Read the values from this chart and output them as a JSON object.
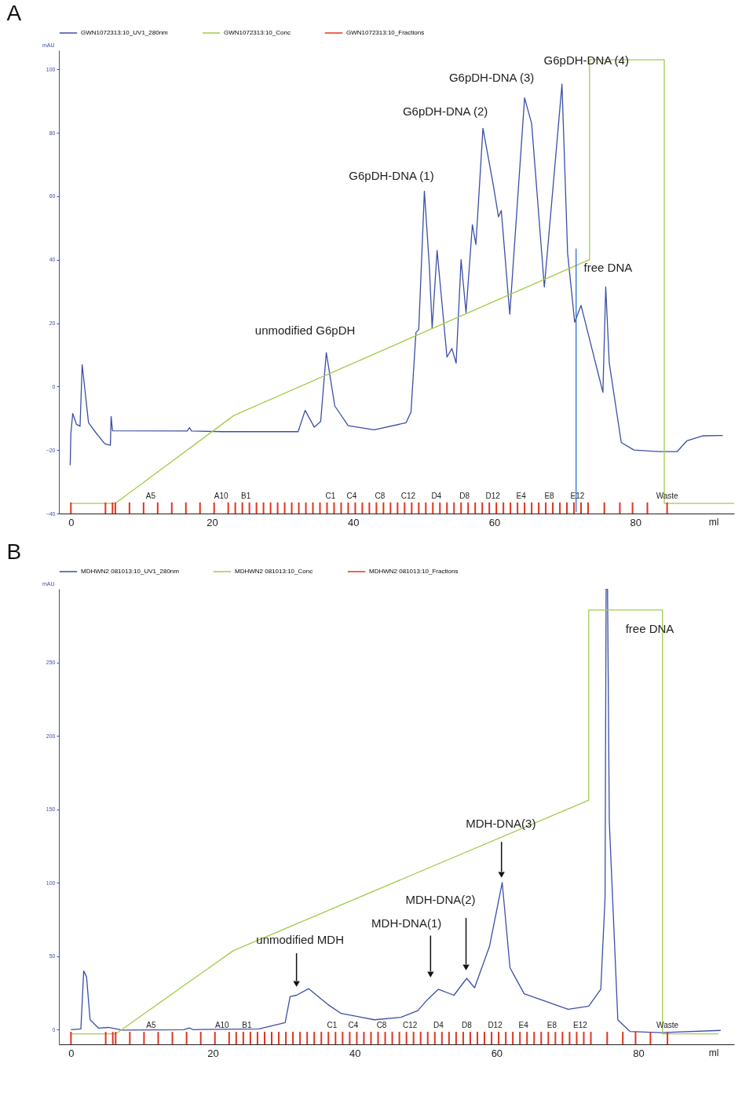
{
  "chart_data": [
    {
      "type": "line",
      "title": "A",
      "xlabel": "ml",
      "ylabel": "mAU",
      "xlim": [
        -1.7,
        94
      ],
      "ylim": [
        -40,
        106
      ],
      "xticks": [
        0,
        20,
        40,
        60,
        80
      ],
      "yticks": [
        -40,
        -20,
        0,
        20,
        40,
        60,
        80,
        100
      ],
      "legend": "top",
      "series": [
        {
          "name": "GWN1072313:10_UV1_280nm",
          "color": "#3c4fa5",
          "x": [
            -0.1,
            0,
            0.26,
            0.8,
            1.3,
            1.6,
            2.5,
            3.6,
            4.8,
            5.6,
            5.7,
            5.9,
            16.5,
            16.8,
            17.1,
            21.4,
            32.2,
            33.2,
            34.5,
            35.4,
            36.2,
            37.4,
            39.3,
            43.0,
            47.5,
            48.2,
            48.9,
            49.3,
            50.1,
            50.8,
            51.2,
            51.9,
            53.3,
            54.0,
            54.6,
            55.3,
            56.0,
            56.9,
            57.4,
            58.4,
            59.9,
            60.6,
            61.0,
            62.2,
            64.3,
            65.3,
            67.1,
            69.6,
            70.4,
            71.4,
            72.3,
            75.4,
            75.8,
            76.3,
            78.0,
            79.8,
            83.3,
            85.9,
            87.3,
            89.6,
            92.4
          ],
          "values": [
            -24.8,
            -14.7,
            -8.5,
            -11.9,
            -12.5,
            6.9,
            -11.4,
            -14.7,
            -18.0,
            -18.5,
            -9.4,
            -13.9,
            -14.0,
            -12.9,
            -14.0,
            -14.2,
            -14.2,
            -7.5,
            -12.8,
            -11.0,
            10.7,
            -6.1,
            -12.3,
            -13.6,
            -11.4,
            -8.0,
            17.0,
            18.0,
            61.6,
            38.0,
            18.4,
            42.9,
            9.3,
            12.0,
            7.4,
            40.0,
            23.3,
            51.0,
            44.8,
            81.4,
            63.1,
            53.5,
            55.5,
            22.8,
            91.0,
            82.9,
            31.4,
            95.3,
            42.0,
            20.3,
            25.6,
            -1.8,
            31.4,
            7.4,
            -17.6,
            -20.0,
            -20.5,
            -20.5,
            -17.1,
            -15.5,
            -15.4
          ]
        },
        {
          "name": "GWN1072313:10_Conc",
          "color": "#a2cc4a",
          "x": [
            0,
            6.3,
            23.1,
            73.5,
            73.5,
            84.1,
            84.1,
            94
          ],
          "values": [
            -36.8,
            -36.8,
            -9.1,
            40.0,
            103.0,
            103.0,
            -36.8,
            -36.8
          ]
        },
        {
          "name": "GWN1072313:10_Fractions",
          "color": "#e2341d",
          "type": "bar",
          "x": [
            0,
            4.9,
            5.9,
            6.3,
            8.3,
            10.3,
            12.3,
            14.3,
            16.3,
            18.3,
            20.3,
            22.3,
            23.3,
            24.3,
            25.3,
            26.3,
            27.3,
            28.3,
            29.3,
            30.3,
            31.3,
            32.3,
            33.3,
            34.3,
            35.3,
            36.3,
            37.3,
            38.3,
            39.3,
            40.3,
            41.3,
            42.3,
            43.3,
            44.3,
            45.3,
            46.3,
            47.3,
            48.3,
            49.3,
            50.3,
            51.3,
            52.3,
            53.3,
            54.3,
            55.3,
            56.3,
            57.3,
            58.3,
            59.3,
            60.3,
            61.3,
            62.3,
            63.3,
            64.3,
            65.3,
            66.3,
            67.3,
            68.3,
            69.3,
            70.3,
            71.3,
            72.3,
            73.3,
            75.6,
            77.8,
            79.6,
            81.7,
            84.5
          ],
          "base": [
            -40,
            -40,
            -40,
            -40,
            -40,
            -40,
            -40,
            -40,
            -40,
            -40,
            -40,
            -40,
            -40,
            -40,
            -40,
            -40,
            -40,
            -40,
            -40,
            -40,
            -40,
            -40,
            -40,
            -40,
            -40,
            -40,
            -40,
            -40,
            -40,
            -40,
            -40,
            -40,
            -40,
            -40,
            -40,
            -40,
            -40,
            -40,
            -40,
            -40,
            -40,
            -40,
            -40,
            -40,
            -40,
            -40,
            -40,
            -40,
            -40,
            -40,
            -40,
            -40,
            -40,
            -40,
            -40,
            -40,
            -40,
            -40,
            -40,
            -40,
            -40,
            -40,
            -40,
            -40,
            -40,
            -40,
            -40,
            -40
          ],
          "values": [
            3.5,
            3.5,
            3.5,
            3.5,
            3.5,
            3.5,
            3.5,
            3.5,
            3.5,
            3.5,
            3.5,
            3.5,
            3.5,
            3.5,
            3.5,
            3.5,
            3.5,
            3.5,
            3.5,
            3.5,
            3.5,
            3.5,
            3.5,
            3.5,
            3.5,
            3.5,
            3.5,
            3.5,
            3.5,
            3.5,
            3.5,
            3.5,
            3.5,
            3.5,
            3.5,
            3.5,
            3.5,
            3.5,
            3.5,
            3.5,
            3.5,
            3.5,
            3.5,
            3.5,
            3.5,
            3.5,
            3.5,
            3.5,
            3.5,
            3.5,
            3.5,
            3.5,
            3.5,
            3.5,
            3.5,
            3.5,
            3.5,
            3.5,
            3.5,
            3.5,
            3.5,
            3.5,
            3.5,
            3.5,
            3.5,
            3.5,
            3.5,
            3.5
          ],
          "value_labels": [
            null,
            null,
            null,
            null,
            null,
            "A5",
            null,
            null,
            null,
            null,
            "A10",
            null,
            null,
            "B1",
            null,
            null,
            null,
            null,
            null,
            null,
            null,
            null,
            null,
            null,
            null,
            "C1",
            null,
            null,
            "C4",
            null,
            null,
            null,
            "C8",
            null,
            null,
            null,
            "C12",
            null,
            null,
            null,
            "D4",
            null,
            null,
            null,
            "D8",
            null,
            null,
            null,
            "D12",
            null,
            null,
            null,
            "E4",
            null,
            null,
            null,
            "E8",
            null,
            null,
            null,
            "E12",
            null,
            null,
            null,
            null,
            null,
            null,
            "Waste"
          ]
        },
        {
          "color": "#2e6fd0",
          "x": [
            71.6,
            71.6
          ],
          "values": [
            43.5,
            -39.5
          ]
        }
      ],
      "annotations": [
        {
          "text": "unmodified G6pDH",
          "x": 36.2,
          "y": 10.7
        },
        {
          "text": "G6pDH-DNA (1)",
          "x": 50.1,
          "y": 61.6
        },
        {
          "text": "G6pDH-DNA (2)",
          "x": 58.4,
          "y": 81.4
        },
        {
          "text": "G6pDH-DNA (3)",
          "x": 64.3,
          "y": 91.0
        },
        {
          "text": "G6pDH-DNA (4)",
          "x": 69.6,
          "y": 95.3
        },
        {
          "text": "free DNA",
          "x": 75.8,
          "y": 31.4
        }
      ]
    },
    {
      "type": "line",
      "title": "B",
      "xlabel": "ml",
      "ylabel": "mAU",
      "xlim": [
        -1.7,
        93.5
      ],
      "ylim": [
        -10,
        300
      ],
      "xticks": [
        0,
        20,
        40,
        60,
        80
      ],
      "yticks": [
        0,
        50,
        100,
        150,
        200,
        250
      ],
      "legend": "top",
      "series": [
        {
          "name": "MDHWN2 081013:10_UV1_280nm",
          "color": "#3c4fa5",
          "x": [
            0,
            1.4,
            1.8,
            2.2,
            2.7,
            3.9,
            5.3,
            7.2,
            15.9,
            16.7,
            17.2,
            26.5,
            30.2,
            30.9,
            31.8,
            33.5,
            36.2,
            38.1,
            41.0,
            42.8,
            46.5,
            48.9,
            50.1,
            51.8,
            54.0,
            55.8,
            56.9,
            59.0,
            60.8,
            61.9,
            62.6,
            63.9,
            70.1,
            73.0,
            74.7,
            75.3,
            75.45,
            75.65,
            75.9,
            77.1,
            78.8,
            83.1,
            91.6
          ],
          "values": [
            0,
            0.5,
            39.9,
            35.9,
            6.7,
            1.0,
            1.5,
            -0.3,
            0,
            1.2,
            0,
            0.5,
            4.8,
            22.5,
            23.4,
            27.9,
            17.2,
            11.0,
            8.4,
            6.7,
            8.4,
            12.9,
            19.6,
            27.5,
            23.4,
            34.9,
            28.5,
            56.5,
            100.1,
            42.1,
            35.9,
            24.4,
            13.9,
            16.0,
            27.5,
            89.8,
            300,
            300,
            141.6,
            6.7,
            -1.2,
            -2.0,
            -0.5
          ]
        },
        {
          "name": "MDHWN2 081013:10_Conc",
          "color": "#a2cc4a",
          "x": [
            0,
            6.3,
            22.9,
            73.0,
            73.0,
            83.4,
            83.4,
            91.3
          ],
          "values": [
            -2.9,
            -2.9,
            53.8,
            156.2,
            285.6,
            285.6,
            -2.9,
            -2.9
          ]
        },
        {
          "name": "MDHWN2 081013:10_Fractions",
          "color": "#e2341d",
          "type": "bar",
          "x": [
            0,
            4.9,
            5.9,
            6.3,
            8.3,
            10.3,
            12.3,
            14.3,
            16.3,
            18.3,
            20.3,
            22.3,
            23.3,
            24.3,
            25.3,
            26.3,
            27.3,
            28.3,
            29.3,
            30.3,
            31.3,
            32.3,
            33.3,
            34.3,
            35.3,
            36.3,
            37.3,
            38.3,
            39.3,
            40.3,
            41.3,
            42.3,
            43.3,
            44.3,
            45.3,
            46.3,
            47.3,
            48.3,
            49.3,
            50.3,
            51.3,
            52.3,
            53.3,
            54.3,
            55.3,
            56.3,
            57.3,
            58.3,
            59.3,
            60.3,
            61.3,
            62.3,
            63.3,
            64.3,
            65.3,
            66.3,
            67.3,
            68.3,
            69.3,
            70.3,
            71.3,
            72.3,
            73.3,
            75.6,
            77.8,
            79.6,
            81.7,
            84.1
          ],
          "base": [
            -10,
            -10,
            -10,
            -10,
            -10,
            -10,
            -10,
            -10,
            -10,
            -10,
            -10,
            -10,
            -10,
            -10,
            -10,
            -10,
            -10,
            -10,
            -10,
            -10,
            -10,
            -10,
            -10,
            -10,
            -10,
            -10,
            -10,
            -10,
            -10,
            -10,
            -10,
            -10,
            -10,
            -10,
            -10,
            -10,
            -10,
            -10,
            -10,
            -10,
            -10,
            -10,
            -10,
            -10,
            -10,
            -10,
            -10,
            -10,
            -10,
            -10,
            -10,
            -10,
            -10,
            -10,
            -10,
            -10,
            -10,
            -10,
            -10,
            -10,
            -10,
            -10,
            -10,
            -10,
            -10,
            -10,
            -10,
            -10
          ],
          "values": [
            8.5,
            8.5,
            8.5,
            8.5,
            8.5,
            8.5,
            8.5,
            8.5,
            8.5,
            8.5,
            8.5,
            8.5,
            8.5,
            8.5,
            8.5,
            8.5,
            8.5,
            8.5,
            8.5,
            8.5,
            8.5,
            8.5,
            8.5,
            8.5,
            8.5,
            8.5,
            8.5,
            8.5,
            8.5,
            8.5,
            8.5,
            8.5,
            8.5,
            8.5,
            8.5,
            8.5,
            8.5,
            8.5,
            8.5,
            8.5,
            8.5,
            8.5,
            8.5,
            8.5,
            8.5,
            8.5,
            8.5,
            8.5,
            8.5,
            8.5,
            8.5,
            8.5,
            8.5,
            8.5,
            8.5,
            8.5,
            8.5,
            8.5,
            8.5,
            8.5,
            8.5,
            8.5,
            8.5,
            8.5,
            8.5,
            8.5,
            8.5,
            8.5
          ],
          "value_labels": [
            null,
            null,
            null,
            null,
            null,
            "A5",
            null,
            null,
            null,
            null,
            "A10",
            null,
            null,
            "B1",
            null,
            null,
            null,
            null,
            null,
            null,
            null,
            null,
            null,
            null,
            null,
            "C1",
            null,
            null,
            "C4",
            null,
            null,
            null,
            "C8",
            null,
            null,
            null,
            "C12",
            null,
            null,
            null,
            "D4",
            null,
            null,
            null,
            "D8",
            null,
            null,
            null,
            "D12",
            null,
            null,
            null,
            "E4",
            null,
            null,
            null,
            "E8",
            null,
            null,
            null,
            "E12",
            null,
            null,
            null,
            null,
            null,
            null,
            "Waste"
          ]
        }
      ],
      "annotations": [
        "unmodified MDH",
        "MDH-DNA(1)",
        "MDH-DNA(2)",
        "MDH-DNA(3)",
        "free DNA"
      ]
    }
  ]
}
